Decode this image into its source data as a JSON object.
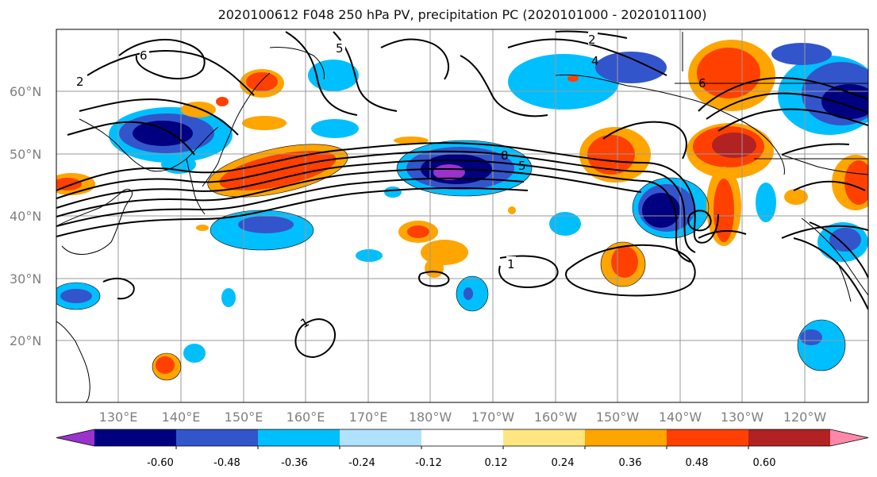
{
  "title": "2020100612 F048 250 hPa PV, precipitation PC (2020101000 - 2020101100)",
  "lat_labels": [
    "60°N",
    "50°N",
    "40°N",
    "30°N",
    "20°N"
  ],
  "lon_labels": [
    "130°E",
    "140°E",
    "150°E",
    "160°E",
    "170°E",
    "180°W",
    "170°W",
    "160°W",
    "150°W",
    "140°W",
    "130°W",
    "120°W"
  ],
  "contour_labels": [
    "6",
    "2",
    "5",
    "2",
    "4",
    "8",
    "5",
    "1",
    "1",
    "6"
  ],
  "colorbar": {
    "tick_labels": [
      "-0.60",
      "-0.48",
      "-0.36",
      "-0.24",
      "-0.12",
      "0.12",
      "0.24",
      "0.36",
      "0.48",
      "0.60"
    ],
    "colors": [
      "#9933cc",
      "#000080",
      "#3355cc",
      "#00bfff",
      "#b0e2ff",
      "#ffffff",
      "#ffe680",
      "#ffa500",
      "#ff4000",
      "#b22222",
      "#ff88aa"
    ]
  }
}
